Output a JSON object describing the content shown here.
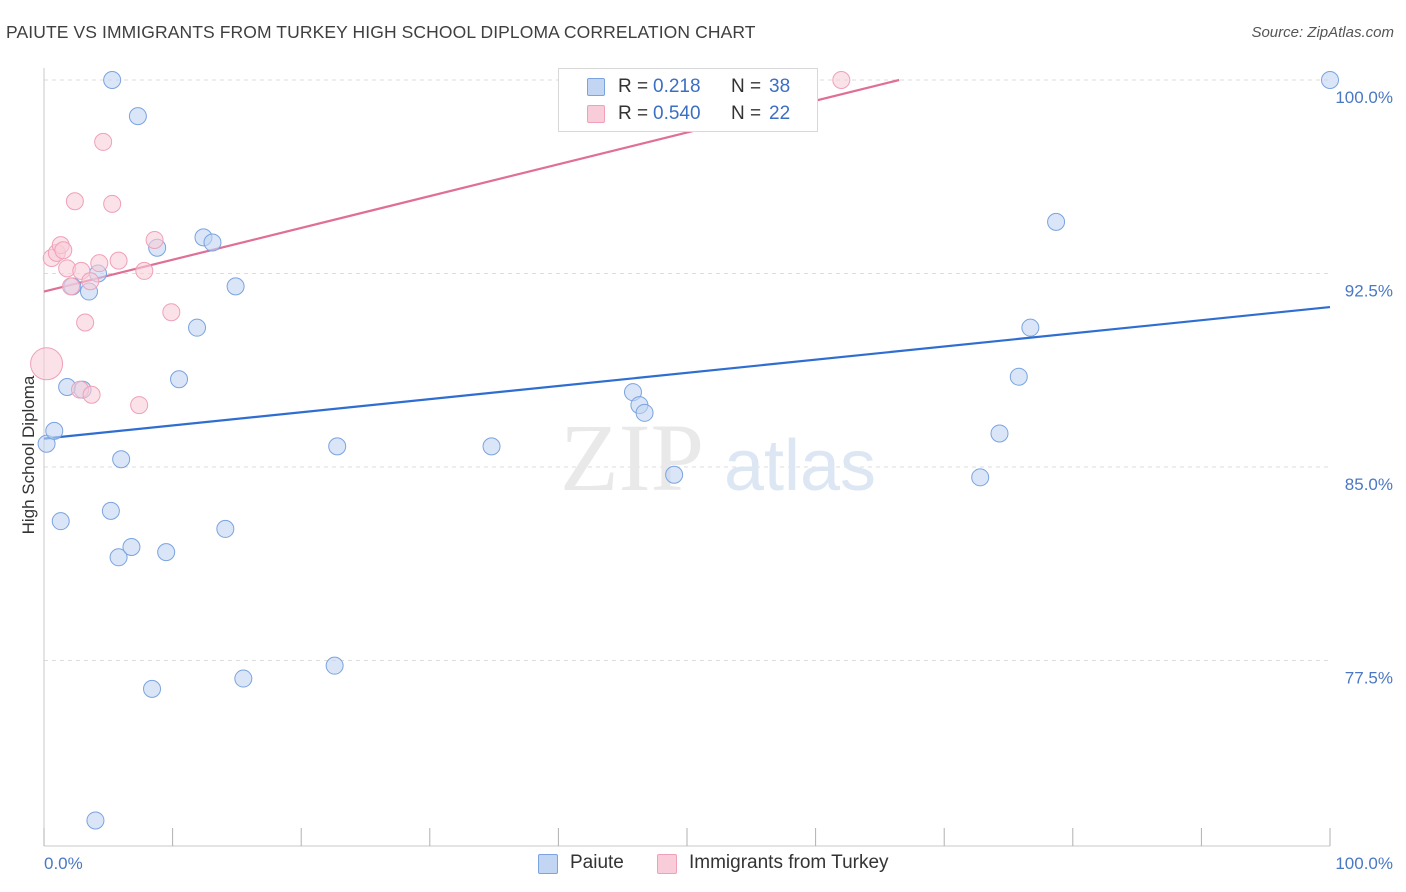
{
  "chart_data": {
    "type": "scatter",
    "title": "PAIUTE VS IMMIGRANTS FROM TURKEY HIGH SCHOOL DIPLOMA CORRELATION CHART",
    "source": "Source: ZipAtlas.com",
    "ylabel": "High School Diploma",
    "xlim": [
      0,
      100
    ],
    "ylim": [
      71.0,
      101.5
    ],
    "y_ticks": [
      {
        "value": 100.0,
        "label": "100.0%"
      },
      {
        "value": 92.5,
        "label": "92.5%"
      },
      {
        "value": 85.0,
        "label": "85.0%"
      },
      {
        "value": 77.5,
        "label": "77.5%"
      }
    ],
    "x_tick_labels": {
      "left": "0.0%",
      "right": "100.0%"
    },
    "series": [
      {
        "name": "Paiute",
        "color": "#7aa3e0",
        "fill": "#c2d6f3",
        "line_color": "#2f6ed0",
        "R": "0.218",
        "N": "38",
        "trend": {
          "x0": 0,
          "y0": 86.1,
          "x1": 100,
          "y1": 91.2
        },
        "points": [
          [
            0.2,
            85.9
          ],
          [
            0.8,
            86.4
          ],
          [
            1.3,
            82.9
          ],
          [
            1.8,
            88.1
          ],
          [
            2.2,
            92.0
          ],
          [
            3.0,
            88.0
          ],
          [
            3.5,
            91.8
          ],
          [
            4.0,
            71.3
          ],
          [
            4.2,
            92.5
          ],
          [
            5.2,
            83.3
          ],
          [
            5.3,
            100.0
          ],
          [
            5.8,
            81.5
          ],
          [
            6.0,
            85.3
          ],
          [
            6.8,
            81.9
          ],
          [
            7.3,
            98.6
          ],
          [
            8.4,
            76.4
          ],
          [
            8.8,
            93.5
          ],
          [
            9.5,
            81.7
          ],
          [
            10.5,
            88.4
          ],
          [
            11.9,
            90.4
          ],
          [
            12.4,
            93.9
          ],
          [
            13.1,
            93.7
          ],
          [
            14.1,
            82.6
          ],
          [
            14.9,
            92.0
          ],
          [
            15.5,
            76.8
          ],
          [
            22.6,
            77.3
          ],
          [
            22.8,
            85.8
          ],
          [
            34.8,
            85.8
          ],
          [
            45.8,
            87.9
          ],
          [
            46.3,
            87.4
          ],
          [
            46.7,
            87.1
          ],
          [
            49.0,
            84.7
          ],
          [
            72.8,
            84.6
          ],
          [
            74.3,
            86.3
          ],
          [
            75.8,
            88.5
          ],
          [
            76.7,
            90.4
          ],
          [
            78.7,
            94.5
          ],
          [
            100.0,
            100.0
          ]
        ]
      },
      {
        "name": "Immigrants from Turkey",
        "color": "#f0a0b8",
        "fill": "#f8cdd9",
        "line_color": "#e06f96",
        "R": "0.540",
        "N": "22",
        "trend": {
          "x0": 0,
          "y0": 91.8,
          "x1": 66.5,
          "y1": 100.0
        },
        "points": [
          [
            0.2,
            89.0
          ],
          [
            0.6,
            93.1
          ],
          [
            1.0,
            93.3
          ],
          [
            1.3,
            93.6
          ],
          [
            1.5,
            93.4
          ],
          [
            1.8,
            92.7
          ],
          [
            2.1,
            92.0
          ],
          [
            2.4,
            95.3
          ],
          [
            2.8,
            88.0
          ],
          [
            2.9,
            92.6
          ],
          [
            3.2,
            90.6
          ],
          [
            3.6,
            92.2
          ],
          [
            3.7,
            87.8
          ],
          [
            4.3,
            92.9
          ],
          [
            4.6,
            97.6
          ],
          [
            5.3,
            95.2
          ],
          [
            5.8,
            93.0
          ],
          [
            7.4,
            87.4
          ],
          [
            7.8,
            92.6
          ],
          [
            8.6,
            93.8
          ],
          [
            9.9,
            91.0
          ],
          [
            62.0,
            100.0
          ]
        ]
      }
    ],
    "legend_bottom": [
      "Paiute",
      "Immigrants from Turkey"
    ],
    "watermark": "ZIPatlas"
  },
  "legend_labels": {
    "r": "R =",
    "n": "N ="
  }
}
